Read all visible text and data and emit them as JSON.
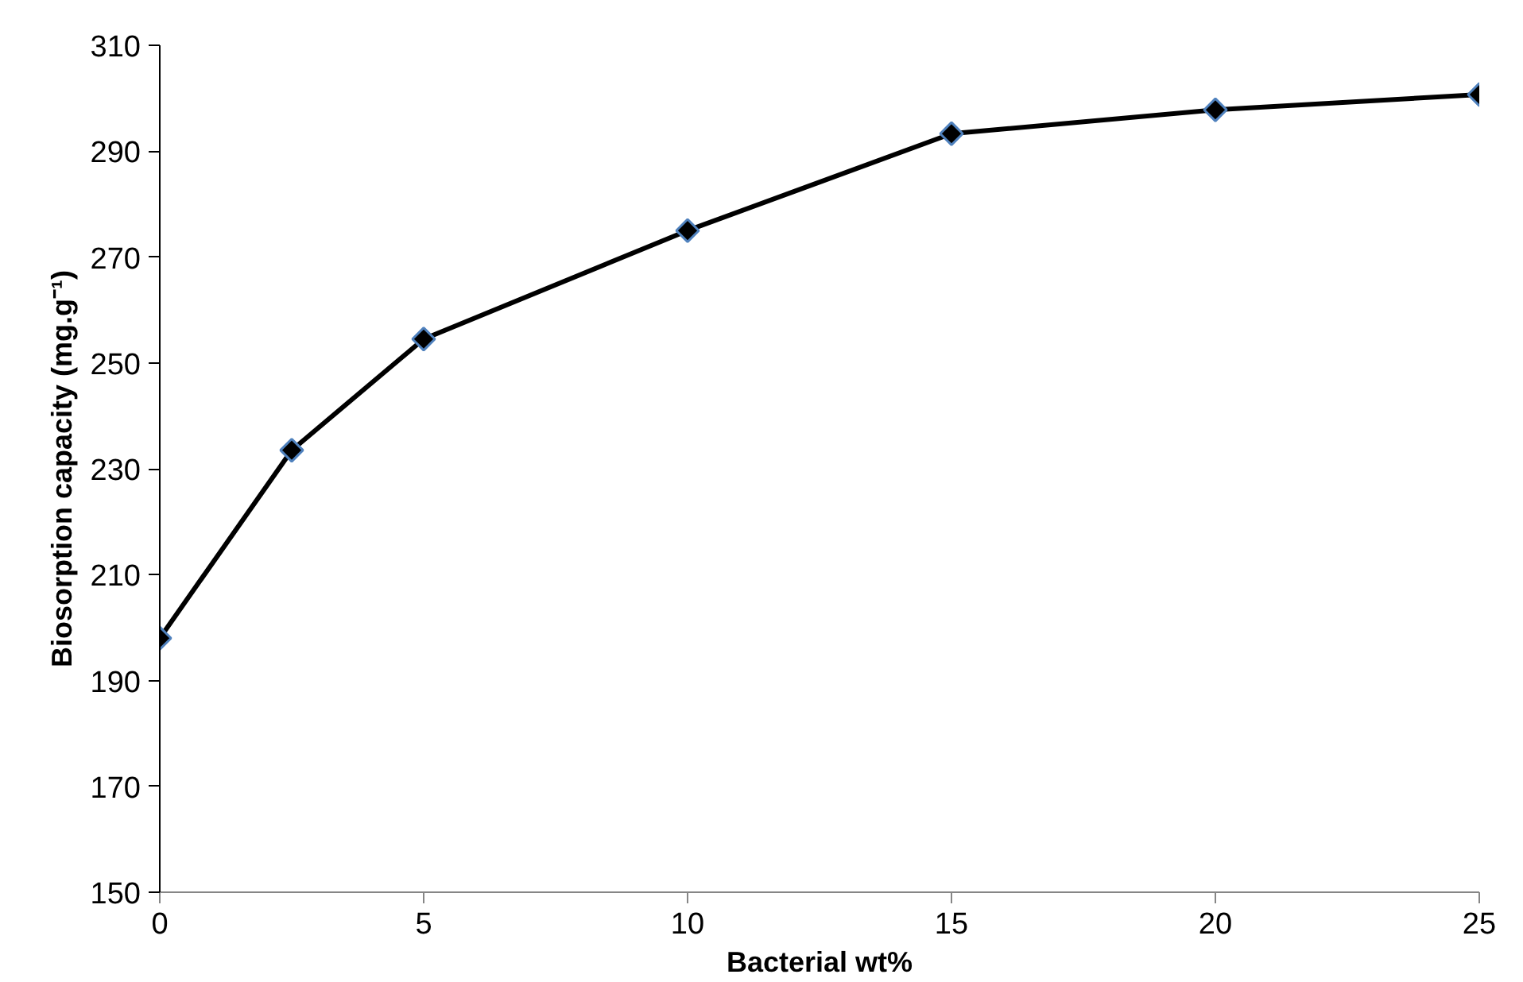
{
  "chart_data": {
    "type": "line",
    "xlabel": "Bacterial wt%",
    "ylabel": "Biosorption capacity (mg.g⁻¹)",
    "x": [
      0,
      2.5,
      5,
      10,
      15,
      20,
      25
    ],
    "series": [
      {
        "color": "#000000",
        "values": [
          198,
          233.5,
          254.5,
          275,
          293.3,
          297.8,
          300.7
        ]
      }
    ],
    "xlim": [
      0,
      25
    ],
    "xticks": [
      0,
      5,
      10,
      15,
      20,
      25
    ],
    "ylim": [
      150,
      310
    ],
    "yticks": [
      150,
      170,
      190,
      210,
      230,
      250,
      270,
      290,
      310
    ],
    "marker": "diamond",
    "line_style": "solid"
  }
}
